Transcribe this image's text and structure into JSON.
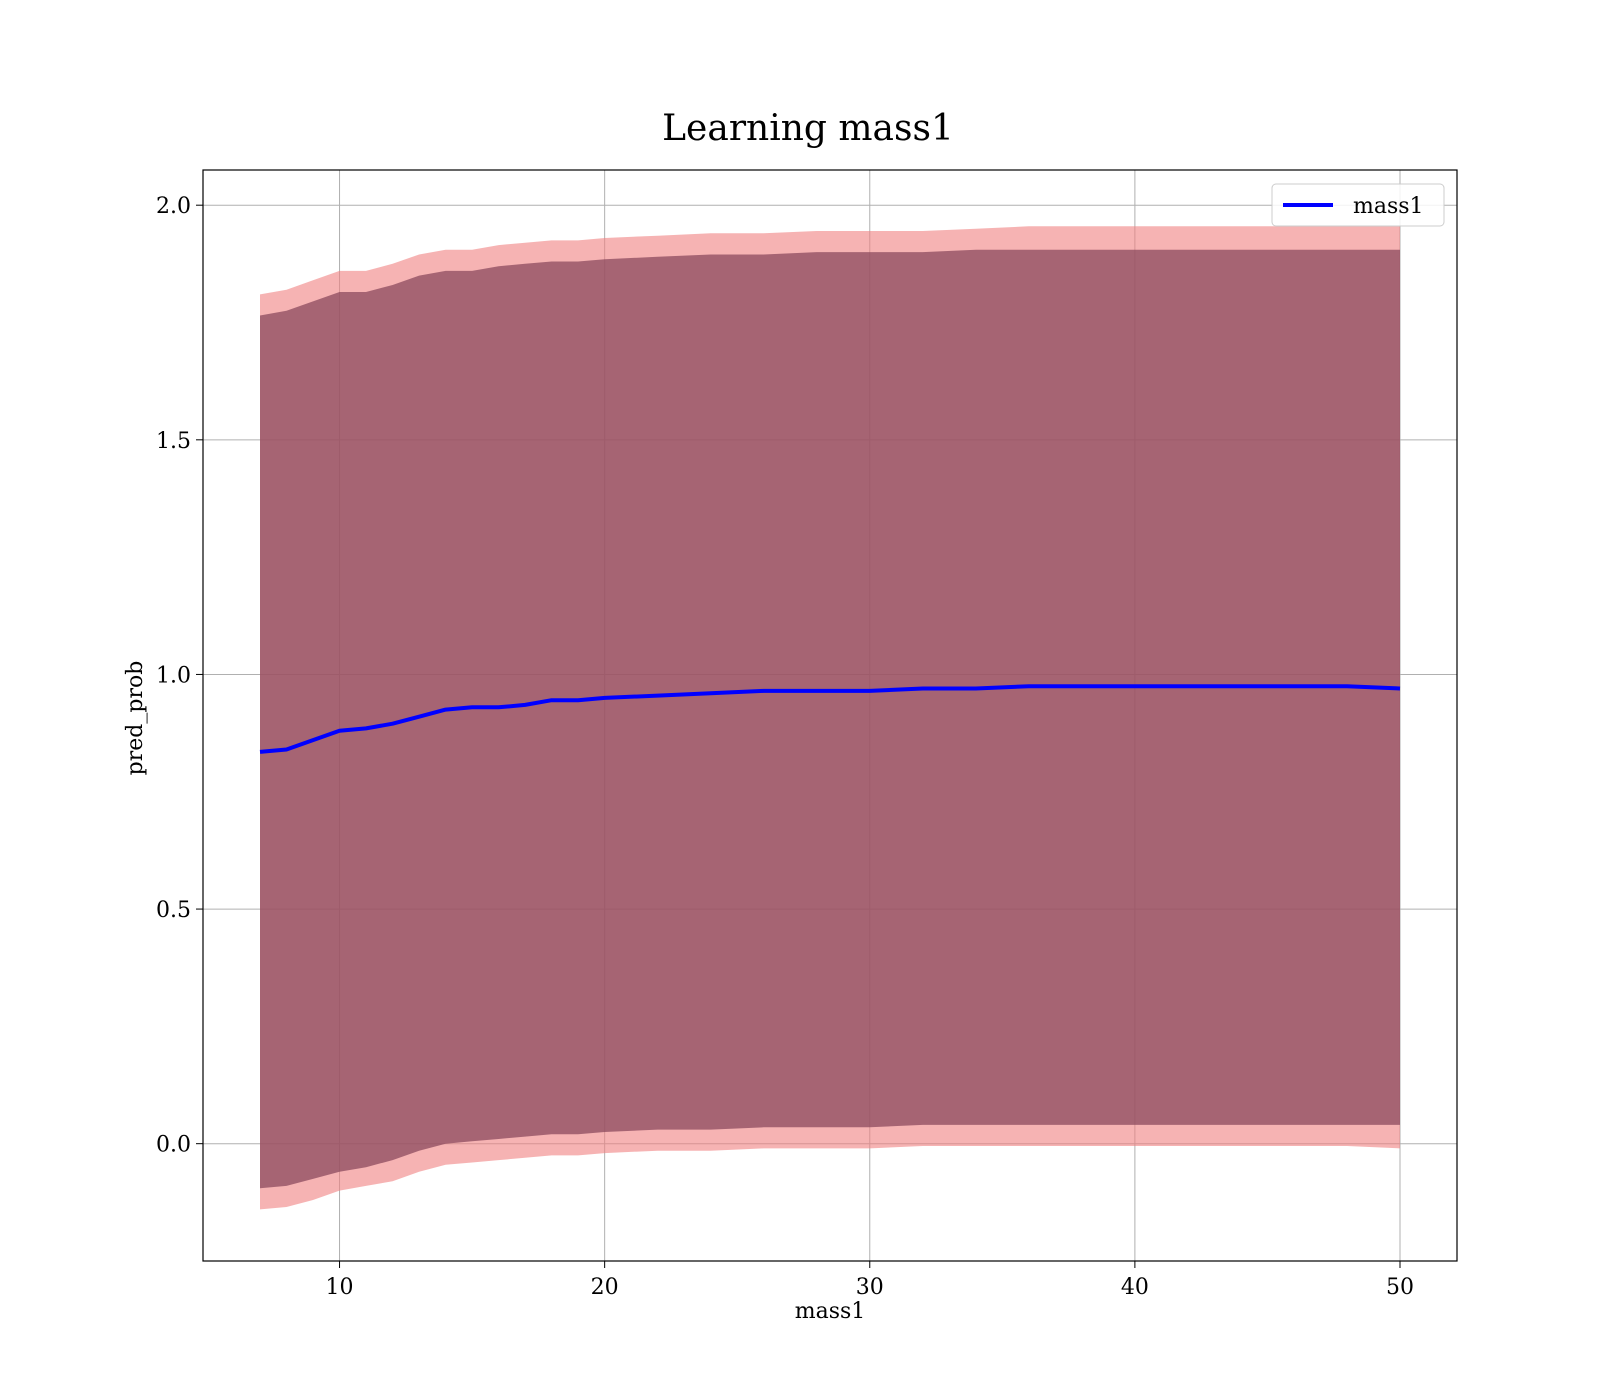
{
  "chart_data": {
    "type": "line",
    "title": "Learning mass1",
    "xlabel": "mass1",
    "ylabel": "pred_prob",
    "xlim": [
      4.85,
      52.15
    ],
    "ylim": [
      -0.25,
      2.075
    ],
    "xticks": [
      10,
      20,
      30,
      40,
      50
    ],
    "yticks": [
      0.0,
      0.5,
      1.0,
      1.5,
      2.0
    ],
    "xtick_labels": [
      "10",
      "20",
      "30",
      "40",
      "50"
    ],
    "ytick_labels": [
      "0.0",
      "0.5",
      "1.0",
      "1.5",
      "2.0"
    ],
    "grid": true,
    "legend_position": "upper right",
    "series": [
      {
        "name": "mass1",
        "color": "#0000ff",
        "x": [
          7,
          8,
          9,
          10,
          11,
          12,
          13,
          14,
          15,
          16,
          17,
          18,
          19,
          20,
          22,
          24,
          26,
          28,
          30,
          32,
          34,
          36,
          38,
          40,
          42,
          44,
          46,
          48,
          50
        ],
        "y": [
          0.835,
          0.84,
          0.86,
          0.88,
          0.885,
          0.895,
          0.91,
          0.925,
          0.93,
          0.93,
          0.935,
          0.945,
          0.945,
          0.95,
          0.955,
          0.96,
          0.965,
          0.965,
          0.965,
          0.97,
          0.97,
          0.975,
          0.975,
          0.975,
          0.975,
          0.975,
          0.975,
          0.975,
          0.97
        ]
      }
    ],
    "bands": [
      {
        "color": "#f08080",
        "opacity": 0.6,
        "x": [
          7,
          8,
          9,
          10,
          11,
          12,
          13,
          14,
          15,
          16,
          17,
          18,
          19,
          20,
          22,
          24,
          26,
          28,
          30,
          32,
          34,
          36,
          38,
          40,
          42,
          44,
          46,
          48,
          50
        ],
        "lower": [
          -0.14,
          -0.135,
          -0.12,
          -0.1,
          -0.09,
          -0.08,
          -0.06,
          -0.045,
          -0.04,
          -0.035,
          -0.03,
          -0.025,
          -0.025,
          -0.02,
          -0.015,
          -0.015,
          -0.01,
          -0.01,
          -0.01,
          -0.005,
          -0.005,
          -0.005,
          -0.005,
          -0.005,
          -0.005,
          -0.005,
          -0.005,
          -0.005,
          -0.01
        ],
        "upper": [
          1.81,
          1.82,
          1.84,
          1.86,
          1.86,
          1.875,
          1.895,
          1.905,
          1.905,
          1.915,
          1.92,
          1.925,
          1.925,
          1.93,
          1.935,
          1.94,
          1.94,
          1.945,
          1.945,
          1.945,
          1.95,
          1.955,
          1.955,
          1.955,
          1.955,
          1.955,
          1.955,
          1.955,
          1.955
        ]
      },
      {
        "color": "#8b4a5e",
        "opacity": 0.75,
        "x": [
          7,
          8,
          9,
          10,
          11,
          12,
          13,
          14,
          15,
          16,
          17,
          18,
          19,
          20,
          22,
          24,
          26,
          28,
          30,
          32,
          34,
          36,
          38,
          40,
          42,
          44,
          46,
          48,
          50
        ],
        "lower": [
          -0.095,
          -0.09,
          -0.075,
          -0.06,
          -0.05,
          -0.035,
          -0.015,
          0.0,
          0.005,
          0.01,
          0.015,
          0.02,
          0.02,
          0.025,
          0.03,
          0.03,
          0.035,
          0.035,
          0.035,
          0.04,
          0.04,
          0.04,
          0.04,
          0.04,
          0.04,
          0.04,
          0.04,
          0.04,
          0.04
        ],
        "upper": [
          1.765,
          1.775,
          1.795,
          1.815,
          1.815,
          1.83,
          1.85,
          1.86,
          1.86,
          1.87,
          1.875,
          1.88,
          1.88,
          1.885,
          1.89,
          1.895,
          1.895,
          1.9,
          1.9,
          1.9,
          1.905,
          1.905,
          1.905,
          1.905,
          1.905,
          1.905,
          1.905,
          1.905,
          1.905
        ]
      }
    ]
  }
}
